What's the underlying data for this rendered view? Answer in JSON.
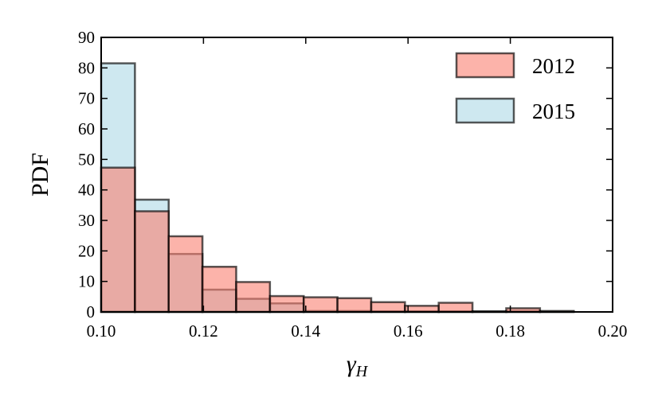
{
  "chart_data": {
    "type": "bar",
    "subtype": "overlapping-histogram",
    "title": "",
    "xlabel": "γ",
    "xlabel_subscript": "H",
    "ylabel": "PDF",
    "xlim": [
      0.1,
      0.2
    ],
    "ylim": [
      0,
      90
    ],
    "x_ticks": [
      "0.10",
      "0.12",
      "0.14",
      "0.16",
      "0.18",
      "0.20"
    ],
    "x_tick_values": [
      0.1,
      0.12,
      0.14,
      0.16,
      0.18,
      0.2
    ],
    "y_ticks": [
      "0",
      "10",
      "20",
      "30",
      "40",
      "50",
      "60",
      "70",
      "80",
      "90"
    ],
    "y_tick_values": [
      0,
      10,
      20,
      30,
      40,
      50,
      60,
      70,
      80,
      90
    ],
    "grid": false,
    "legend_position": "top-right",
    "series": [
      {
        "name": "2015",
        "color": "#add8e6",
        "bins": [
          {
            "x0": 0.1,
            "x1": 0.1066,
            "value": 81.5
          },
          {
            "x0": 0.1066,
            "x1": 0.1132,
            "value": 36.8
          },
          {
            "x0": 0.1132,
            "x1": 0.1198,
            "value": 19.0
          },
          {
            "x0": 0.1198,
            "x1": 0.1264,
            "value": 7.3
          },
          {
            "x0": 0.1264,
            "x1": 0.133,
            "value": 4.3
          },
          {
            "x0": 0.133,
            "x1": 0.1396,
            "value": 2.8
          },
          {
            "x0": 0.1396,
            "x1": 0.1462,
            "value": 0.3
          },
          {
            "x0": 0.1462,
            "x1": 0.1528,
            "value": 0.3
          },
          {
            "x0": 0.1528,
            "x1": 0.1594,
            "value": 0.2
          },
          {
            "x0": 0.1594,
            "x1": 0.166,
            "value": 0.2
          },
          {
            "x0": 0.166,
            "x1": 0.1726,
            "value": 0.2
          },
          {
            "x0": 0.1726,
            "x1": 0.1792,
            "value": 0.1
          },
          {
            "x0": 0.1792,
            "x1": 0.1858,
            "value": 0.2
          },
          {
            "x0": 0.1858,
            "x1": 0.1924,
            "value": 0.1
          }
        ]
      },
      {
        "name": "2012",
        "color": "#fa8072",
        "bins": [
          {
            "x0": 0.1,
            "x1": 0.1066,
            "value": 47.3
          },
          {
            "x0": 0.1066,
            "x1": 0.1132,
            "value": 33.0
          },
          {
            "x0": 0.1132,
            "x1": 0.1198,
            "value": 24.8
          },
          {
            "x0": 0.1198,
            "x1": 0.1264,
            "value": 14.8
          },
          {
            "x0": 0.1264,
            "x1": 0.133,
            "value": 9.8
          },
          {
            "x0": 0.133,
            "x1": 0.1396,
            "value": 5.2
          },
          {
            "x0": 0.1396,
            "x1": 0.1462,
            "value": 4.8
          },
          {
            "x0": 0.1462,
            "x1": 0.1528,
            "value": 4.5
          },
          {
            "x0": 0.1528,
            "x1": 0.1594,
            "value": 3.2
          },
          {
            "x0": 0.1594,
            "x1": 0.166,
            "value": 2.0
          },
          {
            "x0": 0.166,
            "x1": 0.1726,
            "value": 3.0
          },
          {
            "x0": 0.1726,
            "x1": 0.1792,
            "value": 0.2
          },
          {
            "x0": 0.1792,
            "x1": 0.1858,
            "value": 1.2
          },
          {
            "x0": 0.1858,
            "x1": 0.1924,
            "value": 0.3
          }
        ]
      }
    ],
    "legend": [
      {
        "name": "2012",
        "color": "#fa8072"
      },
      {
        "name": "2015",
        "color": "#add8e6"
      }
    ]
  }
}
